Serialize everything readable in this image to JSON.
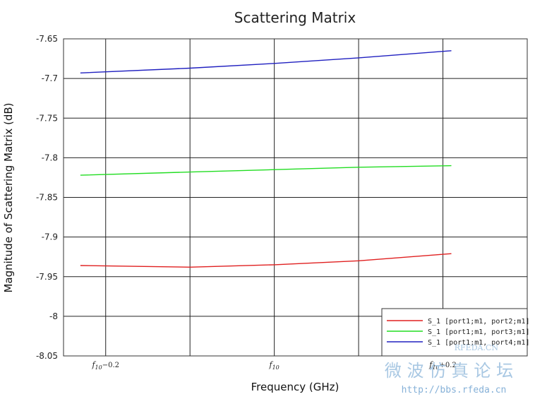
{
  "chart_data": {
    "type": "line",
    "title": "Scattering Matrix",
    "xlabel": "Frequency (GHz)",
    "ylabel": "Magnitude of Scattering Matrix (dB)",
    "ylim": [
      -8.05,
      -7.65
    ],
    "yticks": [
      -7.65,
      -7.7,
      -7.75,
      -7.8,
      -7.85,
      -7.9,
      -7.95,
      -8,
      -8.05
    ],
    "ytick_labels": [
      "-7.65",
      "-7.7",
      "-7.75",
      "-7.8",
      "-7.85",
      "-7.9",
      "-7.95",
      "-8",
      "-8.05"
    ],
    "xlim": [
      -0.25,
      0.3
    ],
    "xticks": [
      -0.2,
      0.0,
      0.2
    ],
    "xtick_labels": [
      {
        "base": "f",
        "sub": "10",
        "suffix": "−0.2"
      },
      {
        "base": "f",
        "sub": "10",
        "suffix": ""
      },
      {
        "base": "f",
        "sub": "10",
        "suffix": "+0.2"
      }
    ],
    "grid": true,
    "legend_position": "bottom-right",
    "series": [
      {
        "name": "S_1 [port1;m1, port2;m1]",
        "color": "#e02020",
        "x": [
          -0.23,
          -0.1,
          0.0,
          0.1,
          0.21
        ],
        "y": [
          -7.936,
          -7.938,
          -7.935,
          -7.93,
          -7.921
        ]
      },
      {
        "name": "S_1 [port1;m1, port3;m1]",
        "color": "#22dd22",
        "x": [
          -0.23,
          -0.1,
          0.0,
          0.1,
          0.21
        ],
        "y": [
          -7.822,
          -7.818,
          -7.815,
          -7.812,
          -7.81
        ]
      },
      {
        "name": "S_1 [port1;m1, port4;m1]",
        "color": "#2020c0",
        "x": [
          -0.23,
          -0.1,
          0.0,
          0.1,
          0.21
        ],
        "y": [
          -7.693,
          -7.687,
          -7.681,
          -7.674,
          -7.665
        ]
      }
    ]
  },
  "watermark": {
    "site": "RFEDA.CN",
    "forum": "微 波 仿 真 论 坛",
    "url": "http://bbs.rfeda.cn"
  }
}
